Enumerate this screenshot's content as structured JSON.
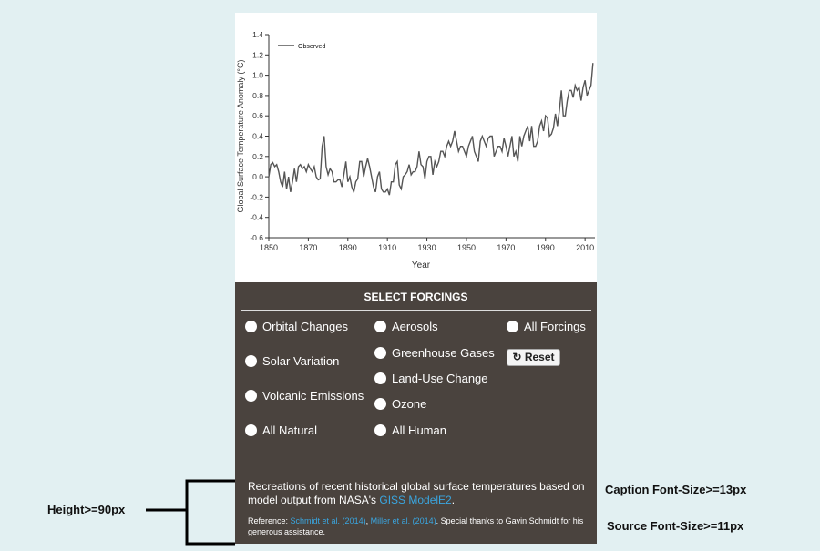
{
  "chart_data": {
    "type": "line",
    "x_label": "Year",
    "y_label": "Global Surface Temperature Anomaly (°C)",
    "xlim": [
      1850,
      2015
    ],
    "xticks": [
      1850,
      1870,
      1890,
      1910,
      1930,
      1950,
      1970,
      1990,
      2010
    ],
    "ylim": [
      -0.6,
      1.4
    ],
    "yticks": [
      -0.6,
      -0.4,
      -0.2,
      {
        "value": 0,
        "label": "0.0"
      },
      0.2,
      0.4,
      0.6,
      0.8,
      {
        "value": 1,
        "label": "1.0"
      },
      1.2,
      1.4
    ],
    "grid": false,
    "legend": "top-left",
    "x": [
      1850,
      1851,
      1852,
      1853,
      1854,
      1855,
      1856,
      1857,
      1858,
      1859,
      1860,
      1861,
      1862,
      1863,
      1864,
      1865,
      1866,
      1867,
      1868,
      1869,
      1870,
      1871,
      1872,
      1873,
      1874,
      1875,
      1876,
      1877,
      1878,
      1879,
      1880,
      1881,
      1882,
      1883,
      1884,
      1885,
      1886,
      1887,
      1888,
      1889,
      1890,
      1891,
      1892,
      1893,
      1894,
      1895,
      1896,
      1897,
      1898,
      1899,
      1900,
      1901,
      1902,
      1903,
      1904,
      1905,
      1906,
      1907,
      1908,
      1909,
      1910,
      1911,
      1912,
      1913,
      1914,
      1915,
      1916,
      1917,
      1918,
      1919,
      1920,
      1921,
      1922,
      1923,
      1924,
      1925,
      1926,
      1927,
      1928,
      1929,
      1930,
      1931,
      1932,
      1933,
      1934,
      1935,
      1936,
      1937,
      1938,
      1939,
      1940,
      1941,
      1942,
      1943,
      1944,
      1945,
      1946,
      1947,
      1948,
      1949,
      1950,
      1951,
      1952,
      1953,
      1954,
      1955,
      1956,
      1957,
      1958,
      1959,
      1960,
      1961,
      1962,
      1963,
      1964,
      1965,
      1966,
      1967,
      1968,
      1969,
      1970,
      1971,
      1972,
      1973,
      1974,
      1975,
      1976,
      1977,
      1978,
      1979,
      1980,
      1981,
      1982,
      1983,
      1984,
      1985,
      1986,
      1987,
      1988,
      1989,
      1990,
      1991,
      1992,
      1993,
      1994,
      1995,
      1996,
      1997,
      1998,
      1999,
      2000,
      2001,
      2002,
      2003,
      2004,
      2005,
      2006,
      2007,
      2008,
      2009,
      2010,
      2011,
      2012,
      2013,
      2014
    ],
    "series": [
      {
        "name": "Observed",
        "color": "#555555",
        "values": [
          0.0,
          0.12,
          0.14,
          0.1,
          0.12,
          0.05,
          -0.05,
          -0.1,
          0.05,
          -0.12,
          0.0,
          -0.15,
          -0.05,
          0.08,
          -0.05,
          0.1,
          0.12,
          0.08,
          0.1,
          0.05,
          0.12,
          0.08,
          0.05,
          0.1,
          0.0,
          -0.03,
          -0.02,
          0.3,
          0.4,
          0.1,
          0.02,
          0.08,
          0.05,
          -0.05,
          -0.05,
          -0.03,
          -0.03,
          -0.1,
          0.02,
          0.15,
          -0.05,
          0.0,
          -0.1,
          -0.15,
          -0.05,
          -0.02,
          0.15,
          0.15,
          0.0,
          0.1,
          0.18,
          0.1,
          0.0,
          -0.1,
          -0.15,
          0.0,
          0.05,
          -0.12,
          -0.15,
          -0.15,
          -0.12,
          -0.18,
          -0.05,
          -0.05,
          0.12,
          0.15,
          -0.08,
          -0.12,
          0.0,
          0.02,
          0.05,
          0.12,
          0.02,
          0.05,
          0.05,
          0.1,
          0.25,
          0.12,
          0.1,
          -0.02,
          0.15,
          0.2,
          0.2,
          0.02,
          0.15,
          0.1,
          0.15,
          0.25,
          0.25,
          0.2,
          0.3,
          0.35,
          0.3,
          0.35,
          0.45,
          0.35,
          0.25,
          0.3,
          0.3,
          0.25,
          0.2,
          0.3,
          0.35,
          0.4,
          0.25,
          0.2,
          0.15,
          0.35,
          0.4,
          0.35,
          0.3,
          0.38,
          0.4,
          0.4,
          0.2,
          0.25,
          0.3,
          0.3,
          0.25,
          0.38,
          0.3,
          0.2,
          0.3,
          0.4,
          0.2,
          0.25,
          0.15,
          0.4,
          0.3,
          0.4,
          0.45,
          0.5,
          0.35,
          0.5,
          0.3,
          0.3,
          0.35,
          0.5,
          0.55,
          0.45,
          0.6,
          0.58,
          0.4,
          0.42,
          0.48,
          0.62,
          0.5,
          0.65,
          0.85,
          0.6,
          0.6,
          0.75,
          0.85,
          0.85,
          0.78,
          0.9,
          0.85,
          0.88,
          0.75,
          0.88,
          0.95,
          0.8,
          0.85,
          0.9,
          1.12
        ]
      }
    ]
  },
  "forcings": {
    "title": "SELECT FORCINGS",
    "column1": [
      "Orbital Changes",
      "Solar Variation",
      "Volcanic Emissions",
      "All Natural"
    ],
    "column2": [
      "Aerosols",
      "Greenhouse Gases",
      "Land-Use Change",
      "Ozone",
      "All Human"
    ],
    "column3": [
      "All Forcings"
    ],
    "reset": "Reset"
  },
  "caption": {
    "text": "Recreations of recent historical global surface temperatures based on model output from NASA's ",
    "link": "GISS ModelE2",
    "end": "."
  },
  "source": {
    "prefix": "Reference: ",
    "link1": "Schmidt et al. (2014)",
    "sep": ", ",
    "link2": "Miller et al. (2014)",
    "rest": ". Special thanks to Gavin Schmidt for his generous assistance."
  },
  "annotations": {
    "height": "Height>=90px",
    "caption_size": "Caption Font-Size>=13px",
    "source_size": "Source Font-Size>=11px"
  }
}
